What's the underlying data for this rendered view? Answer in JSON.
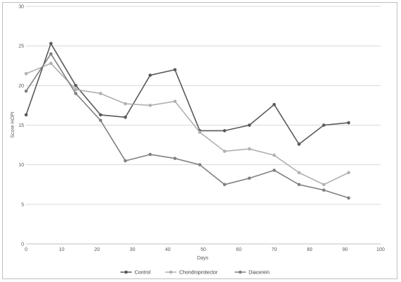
{
  "chart_data": {
    "type": "line",
    "title": "",
    "xlabel": "Days",
    "ylabel": "Score HOPI",
    "xlim": [
      0,
      100
    ],
    "ylim": [
      0,
      30
    ],
    "x_ticks": [
      0,
      10,
      20,
      30,
      40,
      50,
      60,
      70,
      80,
      90,
      100
    ],
    "y_ticks": [
      0,
      5,
      10,
      15,
      20,
      25,
      30
    ],
    "x_tick_labels": [
      "0",
      "10",
      "20",
      "30",
      "40",
      "50",
      "60",
      "70",
      "80",
      "90",
      "100"
    ],
    "y_tick_labels": [
      "0",
      "5",
      "10",
      "15",
      "20",
      "25",
      "30"
    ],
    "grid": "horizontal",
    "legend_position": "bottom",
    "series": [
      {
        "name": "Control",
        "color": "#595959",
        "x": [
          0,
          7,
          14,
          21,
          28,
          35,
          42,
          49,
          56,
          63,
          70,
          77,
          84,
          91
        ],
        "y": [
          16.3,
          25.3,
          20.0,
          16.3,
          16.0,
          21.3,
          22.0,
          14.3,
          14.3,
          15.0,
          17.6,
          12.6,
          15.0,
          15.3
        ]
      },
      {
        "name": "Chondroprotector",
        "color": "#b0b0b0",
        "x": [
          0,
          7,
          14,
          21,
          28,
          35,
          42,
          49,
          56,
          63,
          70,
          77,
          84,
          91
        ],
        "y": [
          21.5,
          22.8,
          19.5,
          19.0,
          17.7,
          17.5,
          18.0,
          14.1,
          11.7,
          12.0,
          11.2,
          9.0,
          7.5,
          9.0
        ]
      },
      {
        "name": "Diacerein",
        "color": "#808080",
        "x": [
          0,
          7,
          14,
          21,
          28,
          35,
          42,
          49,
          56,
          63,
          70,
          77,
          84,
          91
        ],
        "y": [
          19.3,
          24.0,
          19.0,
          15.6,
          10.5,
          11.3,
          10.8,
          10.0,
          7.5,
          8.3,
          9.3,
          7.5,
          6.8,
          5.8
        ]
      }
    ]
  }
}
